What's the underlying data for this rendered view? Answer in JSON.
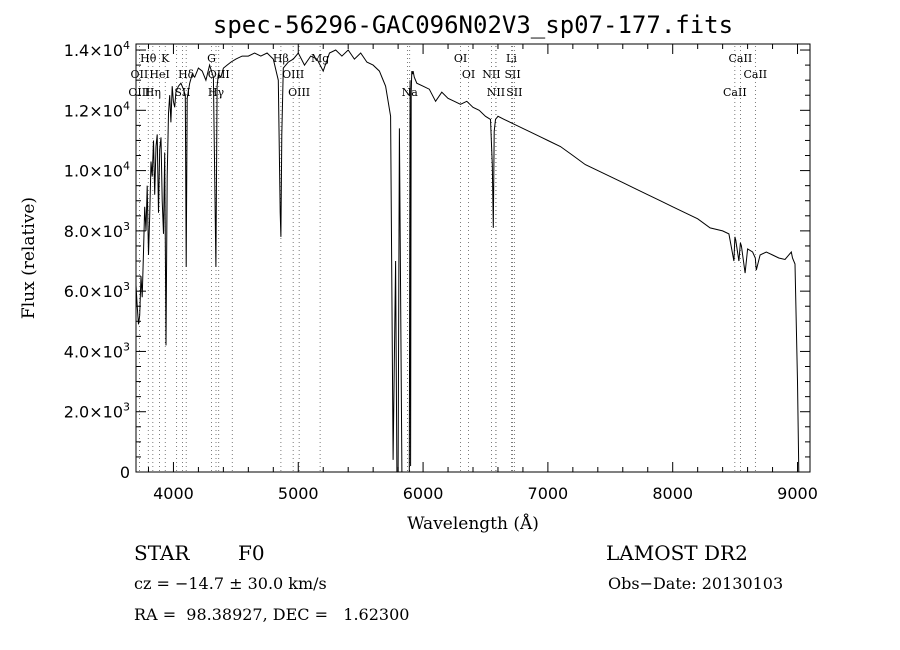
{
  "chart_data": {
    "type": "line",
    "title": "spec-56296-GAC096N02V3_sp07-177.fits",
    "xlabel": "Wavelength (Å)",
    "ylabel": "Flux (relative)",
    "xlim": [
      3700,
      9100
    ],
    "ylim": [
      0,
      14200
    ],
    "x_ticks": [
      4000,
      5000,
      6000,
      7000,
      8000,
      9000
    ],
    "y_ticks": [
      {
        "value": 0,
        "mant": "0",
        "exp": ""
      },
      {
        "value": 2000,
        "mant": "2.0×10",
        "exp": "3"
      },
      {
        "value": 4000,
        "mant": "4.0×10",
        "exp": "3"
      },
      {
        "value": 6000,
        "mant": "6.0×10",
        "exp": "3"
      },
      {
        "value": 8000,
        "mant": "8.0×10",
        "exp": "3"
      },
      {
        "value": 10000,
        "mant": "1.0×10",
        "exp": "4"
      },
      {
        "value": 12000,
        "mant": "1.2×10",
        "exp": "4"
      },
      {
        "value": 14000,
        "mant": "1.4×10",
        "exp": "4"
      }
    ],
    "grid": false,
    "series": [
      {
        "x": [
          3700,
          3710,
          3720,
          3730,
          3740,
          3750,
          3760,
          3770,
          3780,
          3790,
          3800,
          3810,
          3820,
          3830,
          3840,
          3850,
          3860,
          3870,
          3880,
          3890,
          3900,
          3910,
          3920,
          3930,
          3940,
          3950,
          3960,
          3970,
          3980,
          3990,
          4000,
          4010,
          4020,
          4040,
          4060,
          4080,
          4095,
          4102,
          4110,
          4130,
          4150,
          4170,
          4200,
          4230,
          4260,
          4290,
          4320,
          4340,
          4350,
          4360,
          4380,
          4400,
          4430,
          4460,
          4500,
          4550,
          4600,
          4650,
          4700,
          4750,
          4800,
          4840,
          4855,
          4861,
          4868,
          4880,
          4920,
          4960,
          5000,
          5050,
          5100,
          5150,
          5200,
          5250,
          5300,
          5350,
          5400,
          5450,
          5500,
          5550,
          5600,
          5650,
          5700,
          5740,
          5760,
          5780,
          5790,
          5800,
          5810,
          5830,
          5850,
          5870,
          5890,
          5896,
          5900,
          5905,
          5910,
          5915,
          5920,
          5930,
          5950,
          6000,
          6050,
          6100,
          6150,
          6200,
          6250,
          6300,
          6350,
          6400,
          6450,
          6500,
          6540,
          6555,
          6563,
          6570,
          6580,
          6600,
          6650,
          6700,
          6750,
          6800,
          6850,
          6900,
          6950,
          7000,
          7100,
          7200,
          7300,
          7400,
          7500,
          7600,
          7700,
          7800,
          7900,
          8000,
          8100,
          8200,
          8300,
          8400,
          8450,
          8490,
          8498,
          8505,
          8530,
          8542,
          8550,
          8580,
          8600,
          8640,
          8662,
          8670,
          8700,
          8750,
          8800,
          8850,
          8900,
          8950,
          8960,
          8980,
          9000,
          9010
        ],
        "y": [
          6200,
          5500,
          4900,
          5200,
          6500,
          5800,
          7300,
          8800,
          8000,
          9500,
          7200,
          8500,
          10300,
          9800,
          11000,
          9200,
          10800,
          11200,
          8600,
          10700,
          11100,
          9000,
          7900,
          10600,
          4200,
          9800,
          11900,
          12500,
          11600,
          12800,
          12300,
          12100,
          12600,
          12800,
          12900,
          12700,
          12500,
          6800,
          12400,
          12900,
          13200,
          13100,
          13400,
          13300,
          13000,
          13500,
          13100,
          6800,
          12800,
          13200,
          13100,
          13400,
          13500,
          13600,
          13700,
          13800,
          13800,
          13900,
          13800,
          13900,
          13700,
          13000,
          8600,
          7800,
          11200,
          13400,
          13600,
          13700,
          13900,
          13500,
          13800,
          13700,
          13300,
          13900,
          14000,
          13800,
          14000,
          13700,
          13900,
          13600,
          13500,
          13300,
          12800,
          11800,
          400,
          7000,
          0,
          0,
          11400,
          0,
          0,
          0,
          0,
          13000,
          200,
          12600,
          13300,
          13200,
          13300,
          13100,
          12900,
          12800,
          12700,
          12300,
          12600,
          12400,
          12300,
          12200,
          12300,
          12100,
          12000,
          11800,
          11700,
          10200,
          8100,
          11300,
          11700,
          11800,
          11700,
          11600,
          11500,
          11400,
          11300,
          11200,
          11100,
          11000,
          10800,
          10500,
          10200,
          10000,
          9800,
          9600,
          9400,
          9200,
          9000,
          8800,
          8600,
          8400,
          8100,
          8000,
          7900,
          7000,
          7800,
          7700,
          7000,
          7600,
          7500,
          6600,
          7400,
          7300,
          7100,
          6700,
          7200,
          7300,
          7200,
          7100,
          7050,
          7300,
          7100,
          6900,
          3000,
          0
        ]
      }
    ],
    "line_markers": {
      "top": [
        {
          "label": "Hθ",
          "x": 3798
        },
        {
          "label": "K",
          "x": 3934
        },
        {
          "label": "G",
          "x": 4305
        },
        {
          "label": "Hβ",
          "x": 4861
        },
        {
          "label": "Mg",
          "x": 5175
        },
        {
          "label": "OI",
          "x": 6300
        },
        {
          "label": "Li",
          "x": 6708
        },
        {
          "label": "CaII",
          "x": 8542
        }
      ],
      "upper": [
        {
          "label": "OII",
          "x": 3727
        },
        {
          "label": "HeI",
          "x": 3889
        },
        {
          "label": "Hδ",
          "x": 4102
        },
        {
          "label": "OIII",
          "x": 4363
        },
        {
          "label": "OIII",
          "x": 4959
        },
        {
          "label": "OI",
          "x": 6364
        },
        {
          "label": "NII",
          "x": 6548
        },
        {
          "label": "SII",
          "x": 6717
        },
        {
          "label": "CaII",
          "x": 8662
        }
      ],
      "lower": [
        {
          "label": "OIII",
          "x": 3727
        },
        {
          "label": "Hη",
          "x": 3835
        },
        {
          "label": "SII",
          "x": 4072
        },
        {
          "label": "Hγ",
          "x": 4341
        },
        {
          "label": "OIII",
          "x": 5007
        },
        {
          "label": "Na",
          "x": 5893
        },
        {
          "label": "NII",
          "x": 6584
        },
        {
          "label": "SII",
          "x": 6731
        },
        {
          "label": "CaII",
          "x": 8498
        }
      ],
      "extra_lines": [
        4026,
        4471,
        5876,
        6583,
        8498,
        8662
      ]
    }
  },
  "info": {
    "class_label": "STAR",
    "subclass": "F0",
    "survey": "LAMOST DR2",
    "redshift": "cz = −14.7 ± 30.0 km/s",
    "obs_date": "Obs−Date: 20130103",
    "coords": "RA =  98.38927, DEC =   1.62300"
  }
}
